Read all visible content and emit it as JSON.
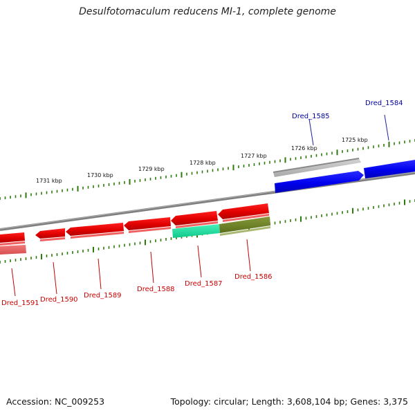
{
  "title": "Desulfotomaculum reducens MI-1, complete genome",
  "footer": {
    "accession_label": "Accession:",
    "accession": "NC_009253",
    "topology_text": "Topology: circular; Length: 3,608,104 bp; Genes: 3,375"
  },
  "colors": {
    "backbone": "#7f7f7f",
    "tick": "#2b7a0b",
    "forward_gene": "#0000ee",
    "reverse_gene": "#ee0000",
    "label_forward": "#00009a",
    "label_reverse": "#c80000"
  },
  "scale_labels": [
    "1731 kbp",
    "1730 kbp",
    "1729 kbp",
    "1728 kbp",
    "1727 kbp",
    "1726 kbp",
    "1725 kbp"
  ],
  "genes": [
    {
      "id": "Dred_1584",
      "strand": "forward"
    },
    {
      "id": "Dred_1585",
      "strand": "forward"
    },
    {
      "id": "Dred_1586",
      "strand": "reverse"
    },
    {
      "id": "Dred_1587",
      "strand": "reverse"
    },
    {
      "id": "Dred_1588",
      "strand": "reverse"
    },
    {
      "id": "Dred_1589",
      "strand": "reverse"
    },
    {
      "id": "Dred_1590",
      "strand": "reverse"
    },
    {
      "id": "Dred_1591",
      "strand": "reverse"
    }
  ]
}
